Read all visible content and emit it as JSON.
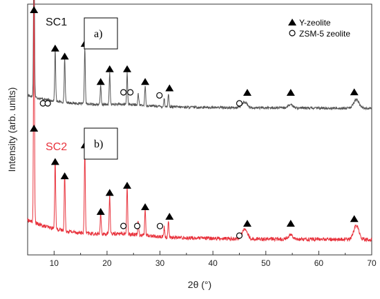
{
  "chart_data": {
    "type": "line",
    "xlabel": "2θ (°)",
    "ylabel": "Intensity (arb. units)",
    "xlim": [
      5,
      70
    ],
    "xticks": [
      "10",
      "20",
      "30",
      "40",
      "50",
      "60",
      "70"
    ],
    "grid": false,
    "legend": {
      "position": "top-right",
      "entries": [
        {
          "marker": "filled-triangle",
          "label": "Y-zeolite"
        },
        {
          "marker": "open-circle",
          "label": "ZSM-5 zeolite"
        }
      ]
    },
    "series": [
      {
        "name": "SC1",
        "panel_label": "a)",
        "color": "#555555",
        "peaks": [
          [
            6.2,
            0.92
          ],
          [
            10.2,
            0.33
          ],
          [
            12.0,
            0.28
          ],
          [
            15.8,
            0.36
          ],
          [
            18.8,
            0.12
          ],
          [
            20.5,
            0.2
          ],
          [
            23.8,
            0.2
          ],
          [
            25.9,
            0.07
          ],
          [
            27.2,
            0.12
          ],
          [
            30.8,
            0.05
          ],
          [
            31.6,
            0.08
          ],
          [
            46.0,
            0.035
          ],
          [
            54.7,
            0.02
          ],
          [
            67.1,
            0.055
          ]
        ],
        "y_zeolite_peaks": [
          6.2,
          10.2,
          12.0,
          15.8,
          18.8,
          20.5,
          23.8,
          27.2,
          31.8,
          46.5,
          54.7,
          66.7
        ],
        "zsm5_peaks": [
          7.9,
          8.8,
          23.1,
          24.4,
          29.9,
          45.0
        ]
      },
      {
        "name": "SC2",
        "panel_label": "b)",
        "color": "#e8323c",
        "peaks": [
          [
            6.2,
            0.95
          ],
          [
            10.2,
            0.3
          ],
          [
            12.0,
            0.24
          ],
          [
            15.8,
            0.37
          ],
          [
            18.8,
            0.09
          ],
          [
            20.5,
            0.17
          ],
          [
            23.8,
            0.2
          ],
          [
            25.9,
            0.06
          ],
          [
            27.2,
            0.11
          ],
          [
            30.8,
            0.04
          ],
          [
            31.6,
            0.07
          ],
          [
            46.0,
            0.04
          ],
          [
            54.7,
            0.018
          ],
          [
            67.1,
            0.06
          ]
        ],
        "y_zeolite_peaks": [
          6.2,
          10.2,
          12.0,
          15.8,
          18.8,
          20.5,
          23.8,
          27.2,
          31.8,
          46.5,
          54.7,
          66.7
        ],
        "zsm5_peaks": [
          23.1,
          25.7,
          30.0,
          45.0
        ]
      }
    ]
  },
  "colors": {
    "sc1_label": "#111111",
    "sc2_label": "#e8323c",
    "axis": "#333333"
  }
}
